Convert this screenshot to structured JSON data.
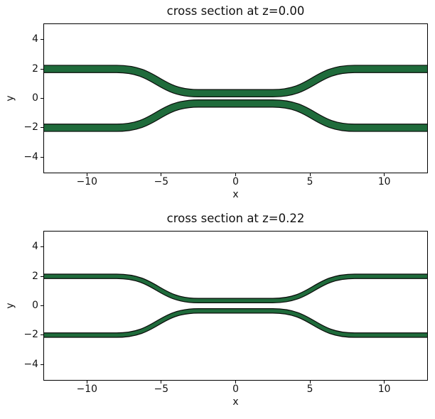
{
  "figure": {
    "background": "#ffffff",
    "kind": "matplotlib-figure",
    "n_subplots": 2
  },
  "chart_data": [
    {
      "type": "area",
      "title": "cross section at z=0.00",
      "xlabel": "x",
      "ylabel": "y",
      "xlim": [
        -12.88,
        12.88
      ],
      "ylim": [
        -5.05,
        5.05
      ],
      "grid": false,
      "legend": null,
      "xticks": {
        "values": [
          -10,
          -5,
          0,
          5,
          10
        ],
        "labels": [
          "−10",
          "−5",
          "0",
          "5",
          "10"
        ]
      },
      "yticks": {
        "values": [
          4,
          2,
          0,
          -2,
          -4
        ],
        "labels": [
          "4",
          "2",
          "0",
          "−2",
          "−4"
        ]
      },
      "shapes": {
        "description": "directional-coupler: two mirrored waveguide strips, straight at y=±2, s-bending to a central coupling section at y=±0.35",
        "fill_color": "#1f6b3b",
        "edge_color": "#0b0d0b",
        "polygon_width": 0.5,
        "edge_linewidth": 0.06,
        "waveguides": [
          "top",
          "bottom"
        ],
        "centerline": {
          "straight_y": 2.0,
          "coupling_y": 0.35,
          "straight_end_x": 8.0,
          "coupling_end_x": 2.5,
          "bend_ctrl_x": 5.25,
          "x_extent": 13.2
        }
      }
    },
    {
      "type": "area",
      "title": "cross section at z=0.22",
      "xlabel": "x",
      "ylabel": "y",
      "xlim": [
        -12.88,
        12.88
      ],
      "ylim": [
        -5.05,
        5.05
      ],
      "grid": false,
      "legend": null,
      "xticks": {
        "values": [
          -10,
          -5,
          0,
          5,
          10
        ],
        "labels": [
          "−10",
          "−5",
          "0",
          "5",
          "10"
        ]
      },
      "yticks": {
        "values": [
          4,
          2,
          0,
          -2,
          -4
        ],
        "labels": [
          "4",
          "2",
          "0",
          "−2",
          "−4"
        ]
      },
      "shapes": {
        "description": "same coupler sliced higher (z=0.22): identical centerlines, narrower strips",
        "fill_color": "#1f6b3b",
        "edge_color": "#0b0d0b",
        "polygon_width": 0.3,
        "edge_linewidth": 0.06,
        "waveguides": [
          "top",
          "bottom"
        ],
        "centerline": {
          "straight_y": 2.0,
          "coupling_y": 0.35,
          "straight_end_x": 8.0,
          "coupling_end_x": 2.5,
          "bend_ctrl_x": 5.25,
          "x_extent": 13.2
        }
      }
    }
  ]
}
